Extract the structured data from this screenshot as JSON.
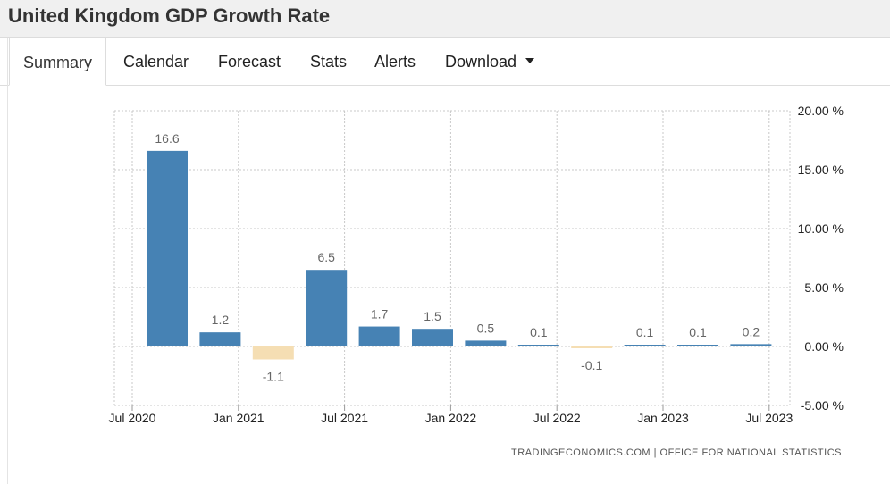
{
  "page": {
    "title": "United Kingdom GDP Growth Rate"
  },
  "tabs": [
    {
      "label": "Summary",
      "active": true
    },
    {
      "label": "Calendar"
    },
    {
      "label": "Forecast"
    },
    {
      "label": "Stats"
    },
    {
      "label": "Alerts"
    },
    {
      "label": "Download"
    }
  ],
  "colors": {
    "positive": "#4682b4",
    "negative": "#f5deb3",
    "grid": "#c8c8c8"
  },
  "chart_data": {
    "type": "bar",
    "title": "United Kingdom GDP Growth Rate",
    "categories": [
      "Q3 2020",
      "Q4 2020",
      "Q1 2021",
      "Q2 2021",
      "Q3 2021",
      "Q4 2021",
      "Q1 2022",
      "Q2 2022",
      "Q3 2022",
      "Q4 2022",
      "Q1 2023",
      "Q2 2023"
    ],
    "values": [
      16.6,
      1.2,
      -1.1,
      6.5,
      1.7,
      1.5,
      0.5,
      0.1,
      -0.1,
      0.1,
      0.1,
      0.2
    ],
    "value_labels": [
      "16.6",
      "1.2",
      "-1.1",
      "6.5",
      "1.7",
      "1.5",
      "0.5",
      "0.1",
      "-0.1",
      "0.1",
      "0.1",
      "0.2"
    ],
    "x_ticks": [
      "Jul 2020",
      "Jan 2021",
      "Jul 2021",
      "Jan 2022",
      "Jul 2022",
      "Jan 2023",
      "Jul 2023"
    ],
    "y_ticks": [
      20,
      15,
      10,
      5,
      0,
      -5
    ],
    "y_tick_labels": [
      "20.00 %",
      "15.00 %",
      "10.00 %",
      "5.00 %",
      "0.00 %",
      "-5.00 %"
    ],
    "ylim": [
      -5,
      20
    ],
    "ylabel": "",
    "xlabel": "",
    "grid": true,
    "source": "TRADINGECONOMICS.COM  |  OFFICE FOR NATIONAL STATISTICS"
  }
}
